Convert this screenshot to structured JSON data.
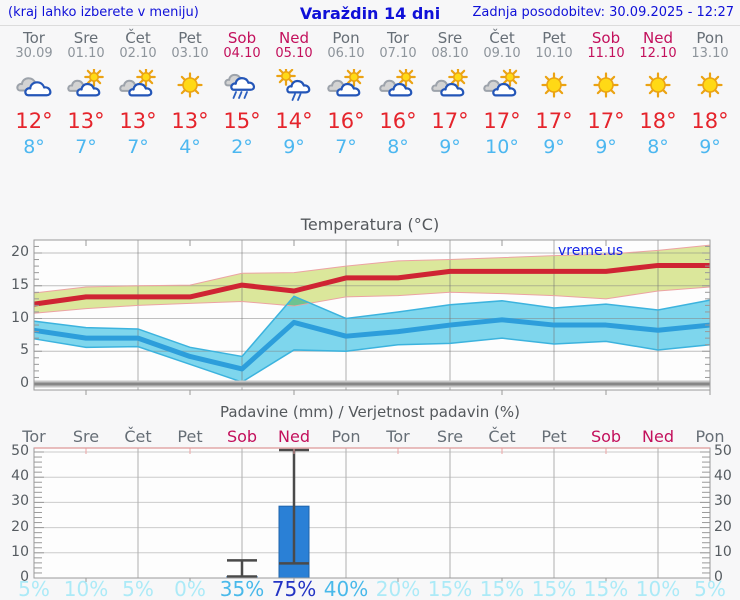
{
  "header": {
    "hint": "(kraj lahko izberete v meniju)",
    "title": "Varaždin 14 dni",
    "updated": "Zadnja posodobitev: 30.09.2025 - 12:27"
  },
  "watermark": "vreme.us",
  "colors": {
    "header_text": "#0f10d8",
    "weekday": "#666e76",
    "date": "#8d949b",
    "weekend": "#c3105c",
    "high_temp": "#e5242c",
    "low_temp": "#4cb7f0",
    "red_line": "#cf2433",
    "red_band": "#dbe79b",
    "band_edge_pink": "#eca3a3",
    "blue_line": "#2d9edb",
    "blue_band": "#7fd8ef",
    "blue_band_edge": "#3cb3de",
    "bar": "#2a80d6",
    "bar_edge": "#1e63ab",
    "whisker": "#4a4a4a",
    "prob_low": "#aceaf7",
    "prob_mid": "#49b9ea",
    "prob_high": "#2334c4",
    "axis": "#9a9a9a",
    "tick": "#999999",
    "label": "#555b60"
  },
  "days": [
    {
      "name": "Tor",
      "date": "30.09",
      "weekend": false,
      "icon": "cloudy",
      "high": 12,
      "low": 8,
      "prob": 5
    },
    {
      "name": "Sre",
      "date": "01.10",
      "weekend": false,
      "icon": "partly-sunny",
      "high": 13,
      "low": 7,
      "prob": 10
    },
    {
      "name": "Čet",
      "date": "02.10",
      "weekend": false,
      "icon": "partly-sunny",
      "high": 13,
      "low": 7,
      "prob": 5
    },
    {
      "name": "Pet",
      "date": "03.10",
      "weekend": false,
      "icon": "sunny",
      "high": 13,
      "low": 4,
      "prob": 0
    },
    {
      "name": "Sob",
      "date": "04.10",
      "weekend": true,
      "icon": "rain",
      "high": 15,
      "low": 2,
      "prob": 35
    },
    {
      "name": "Ned",
      "date": "05.10",
      "weekend": true,
      "icon": "sun-rain",
      "high": 14,
      "low": 9,
      "prob": 75
    },
    {
      "name": "Pon",
      "date": "06.10",
      "weekend": false,
      "icon": "partly-sunny",
      "high": 16,
      "low": 7,
      "prob": 40
    },
    {
      "name": "Tor",
      "date": "07.10",
      "weekend": false,
      "icon": "partly-sunny",
      "high": 16,
      "low": 8,
      "prob": 20
    },
    {
      "name": "Sre",
      "date": "08.10",
      "weekend": false,
      "icon": "partly-sunny",
      "high": 17,
      "low": 9,
      "prob": 15
    },
    {
      "name": "Čet",
      "date": "09.10",
      "weekend": false,
      "icon": "partly-sunny",
      "high": 17,
      "low": 10,
      "prob": 15
    },
    {
      "name": "Pet",
      "date": "10.10",
      "weekend": false,
      "icon": "sunny",
      "high": 17,
      "low": 9,
      "prob": 15
    },
    {
      "name": "Sob",
      "date": "11.10",
      "weekend": true,
      "icon": "sunny",
      "high": 17,
      "low": 9,
      "prob": 15
    },
    {
      "name": "Ned",
      "date": "12.10",
      "weekend": true,
      "icon": "sunny",
      "high": 18,
      "low": 8,
      "prob": 10
    },
    {
      "name": "Pon",
      "date": "13.10",
      "weekend": false,
      "icon": "sunny",
      "high": 18,
      "low": 9,
      "prob": 5
    }
  ],
  "chart_data": [
    {
      "type": "line",
      "title": "Temperatura (°C)",
      "x": [
        "Tor 30.09",
        "Sre 01.10",
        "Čet 02.10",
        "Pet 03.10",
        "Sob 04.10",
        "Ned 05.10",
        "Pon 06.10",
        "Tor 07.10",
        "Sre 08.10",
        "Čet 09.10",
        "Pet 10.10",
        "Sob 11.10",
        "Ned 12.10",
        "Pon 13.10"
      ],
      "series": [
        {
          "name": "max-temperature",
          "color": "#cf2433",
          "values": [
            12.2,
            13.3,
            13.3,
            13.3,
            15.1,
            14.2,
            16.2,
            16.2,
            17.2,
            17.2,
            17.2,
            17.2,
            18.1,
            18.1
          ]
        },
        {
          "name": "max-band-top",
          "values": [
            13.9,
            14.8,
            15.0,
            15.1,
            16.9,
            17.0,
            18.0,
            18.8,
            19.0,
            19.3,
            19.6,
            19.8,
            20.4,
            21.2
          ]
        },
        {
          "name": "max-band-bottom",
          "values": [
            10.8,
            11.5,
            12.0,
            12.3,
            12.6,
            11.9,
            13.3,
            13.5,
            14.0,
            13.8,
            13.5,
            13.0,
            14.2,
            14.8
          ]
        },
        {
          "name": "min-temperature",
          "color": "#2d9edb",
          "values": [
            8.2,
            7.0,
            7.0,
            4.2,
            2.3,
            9.4,
            7.3,
            8.0,
            9.0,
            9.8,
            9.0,
            9.0,
            8.2,
            9.0
          ]
        },
        {
          "name": "min-band-top",
          "values": [
            9.6,
            8.6,
            8.4,
            5.6,
            4.2,
            13.4,
            10.0,
            11.0,
            12.1,
            12.7,
            11.6,
            12.2,
            11.3,
            12.8
          ]
        },
        {
          "name": "min-band-bottom",
          "values": [
            6.9,
            5.6,
            5.7,
            3.0,
            0.3,
            5.2,
            5.0,
            6.0,
            6.2,
            7.0,
            6.1,
            6.5,
            5.2,
            6.0
          ]
        }
      ],
      "ylim": [
        -1,
        22
      ],
      "yticks": [
        0,
        5,
        10,
        15,
        20
      ],
      "grid": true,
      "legend": "none"
    },
    {
      "type": "bar",
      "title": "Padavine (mm) / Verjetnost padavin (%)",
      "categories": [
        "Tor",
        "Sre",
        "Čet",
        "Pet",
        "Sob",
        "Ned",
        "Pon",
        "Tor",
        "Sre",
        "Čet",
        "Pet",
        "Sob",
        "Ned",
        "Pon"
      ],
      "bars": [
        {
          "day": 4,
          "mm": 0.6,
          "whisker_low": 0.6,
          "whisker_high": 7.0
        },
        {
          "day": 5,
          "mm": 28.5,
          "whisker_low": 5.8,
          "whisker_high": 50.8
        }
      ],
      "probabilities_pct": [
        5,
        10,
        5,
        0,
        35,
        75,
        40,
        20,
        15,
        15,
        15,
        15,
        10,
        5
      ],
      "ylim": [
        0,
        51.5
      ],
      "yticks": [
        0,
        10,
        20,
        30,
        40,
        50
      ],
      "grid": true,
      "legend": "none"
    }
  ]
}
